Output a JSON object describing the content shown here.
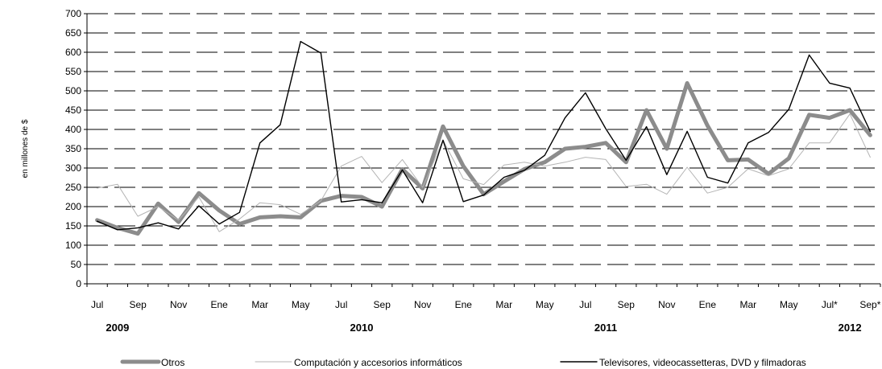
{
  "chart_data": {
    "type": "line",
    "ylabel": "en millones de $",
    "ylim": [
      0,
      700
    ],
    "ytick_step": 50,
    "grid": "horizontal-dashed",
    "legend_position": "bottom",
    "x_tick_labels": [
      "Jul",
      "Sep",
      "Nov",
      "Ene",
      "Mar",
      "May",
      "Jul",
      "Sep",
      "Nov",
      "Ene",
      "Mar",
      "May",
      "Jul",
      "Sep",
      "Nov",
      "Ene",
      "Mar",
      "May",
      "Jul*",
      "Sep*"
    ],
    "year_labels": [
      "2009",
      "2010",
      "2011",
      "2012"
    ],
    "x": [
      "Jul 2009",
      "Ago 2009",
      "Sep 2009",
      "Oct 2009",
      "Nov 2009",
      "Dic 2009",
      "Ene 2010",
      "Feb 2010",
      "Mar 2010",
      "Abr 2010",
      "May 2010",
      "Jun 2010",
      "Jul 2010",
      "Ago 2010",
      "Sep 2010",
      "Oct 2010",
      "Nov 2010",
      "Dic 2010",
      "Ene 2011",
      "Feb 2011",
      "Mar 2011",
      "Abr 2011",
      "May 2011",
      "Jun 2011",
      "Jul 2011",
      "Ago 2011",
      "Sep 2011",
      "Oct 2011",
      "Nov 2011",
      "Dic 2011",
      "Ene 2012",
      "Feb 2012",
      "Mar 2012",
      "Abr 2012",
      "May 2012",
      "Jun 2012",
      "Jul 2012",
      "Ago 2012",
      "Sep 2012"
    ],
    "series": [
      {
        "name": "Otros",
        "color": "#8c8c8c",
        "values": [
          165,
          145,
          130,
          208,
          160,
          235,
          190,
          155,
          172,
          175,
          172,
          215,
          228,
          225,
          200,
          297,
          247,
          408,
          305,
          232,
          265,
          297,
          315,
          350,
          355,
          365,
          315,
          450,
          350,
          520,
          410,
          320,
          322,
          285,
          325,
          438,
          430,
          450,
          385
        ]
      },
      {
        "name": "Computación y accesorios informáticos",
        "color": "#b4b4b4",
        "values": [
          248,
          258,
          175,
          200,
          165,
          225,
          135,
          168,
          210,
          205,
          180,
          215,
          305,
          330,
          262,
          322,
          250,
          372,
          272,
          257,
          308,
          315,
          305,
          315,
          328,
          322,
          252,
          258,
          232,
          302,
          235,
          250,
          298,
          280,
          298,
          365,
          365,
          440,
          328
        ]
      },
      {
        "name": "Televisores, videocassetteras, DVD y filmadoras",
        "color": "#000000",
        "values": [
          162,
          140,
          145,
          158,
          142,
          202,
          155,
          185,
          365,
          412,
          628,
          598,
          212,
          218,
          210,
          295,
          210,
          372,
          213,
          230,
          276,
          294,
          333,
          430,
          495,
          402,
          320,
          407,
          283,
          395,
          276,
          261,
          365,
          392,
          452,
          593,
          520,
          507,
          395
        ]
      }
    ]
  }
}
